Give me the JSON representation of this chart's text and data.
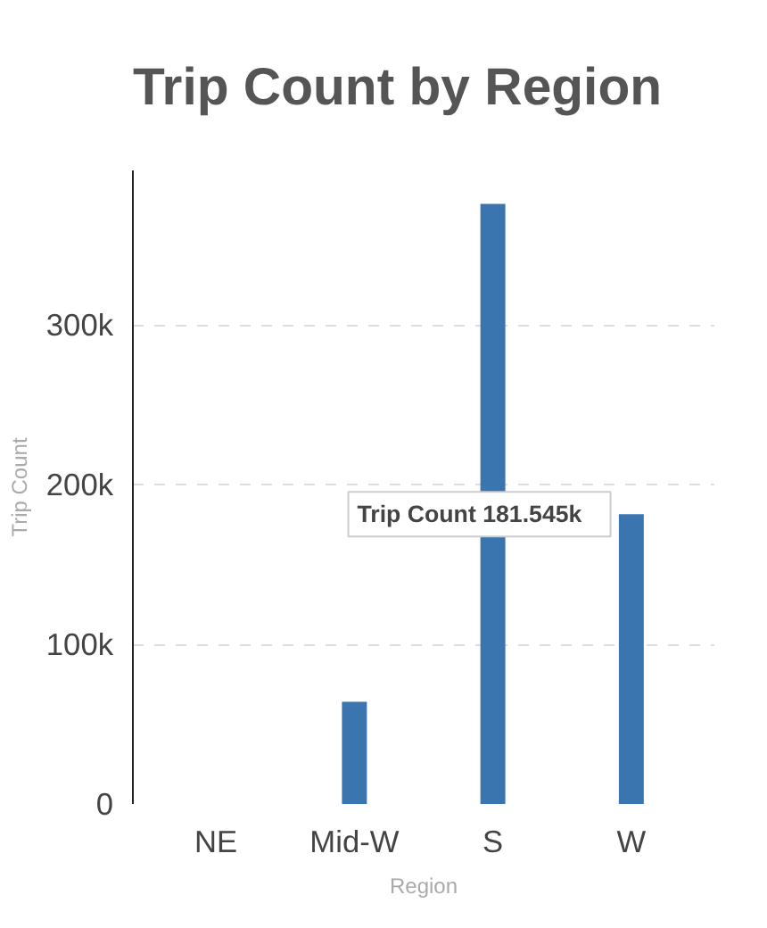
{
  "chart_data": {
    "type": "bar",
    "title": "Trip Count by Region",
    "xlabel": "Region",
    "ylabel": "Trip Count",
    "categories": [
      "NE",
      "Mid-W",
      "S",
      "W"
    ],
    "values": [
      0,
      64000,
      376000,
      181545
    ],
    "color": "#3a75b0",
    "ylim": [
      0,
      397000
    ],
    "yticks": [
      0,
      {
        "value": 100000,
        "label": "100k"
      },
      {
        "value": 200000,
        "label": "200k"
      },
      {
        "value": 300000,
        "label": "300k"
      }
    ],
    "grid": "y",
    "annotations": [
      {
        "text": "Trip Count    181.545k",
        "x": "W",
        "y": 181545
      }
    ]
  }
}
